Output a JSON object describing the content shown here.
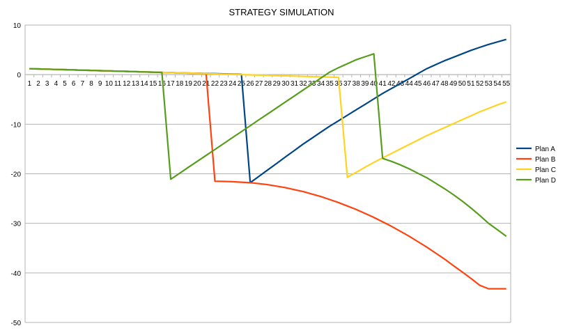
{
  "chart_data": {
    "type": "line",
    "title": "STRATEGY SIMULATION",
    "xlabel": "",
    "ylabel": "",
    "ylim": [
      -50,
      10
    ],
    "yticks": [
      10,
      0,
      -10,
      -20,
      -30,
      -40,
      -50
    ],
    "x": [
      1,
      2,
      3,
      4,
      5,
      6,
      7,
      8,
      9,
      10,
      11,
      12,
      13,
      14,
      15,
      16,
      17,
      18,
      19,
      20,
      21,
      22,
      23,
      24,
      25,
      26,
      27,
      28,
      29,
      30,
      31,
      32,
      33,
      34,
      35,
      36,
      37,
      38,
      39,
      40,
      41,
      42,
      43,
      44,
      45,
      46,
      47,
      48,
      49,
      50,
      51,
      52,
      53,
      54,
      55
    ],
    "grid": "horizontal",
    "legend": "right",
    "series": [
      {
        "name": "Plan A",
        "color": "#004586",
        "values": [
          1.2,
          1.15,
          1.1,
          1.05,
          1.0,
          0.95,
          0.9,
          0.85,
          0.8,
          0.75,
          0.7,
          0.65,
          0.6,
          0.55,
          0.5,
          0.45,
          0.4,
          0.35,
          0.3,
          0.27,
          0.24,
          0.2,
          0.15,
          0.1,
          0.05,
          -21.8,
          -20.5,
          -19.2,
          -17.9,
          -16.6,
          -15.3,
          -14.0,
          -12.8,
          -11.6,
          -10.4,
          -9.3,
          -8.2,
          -7.1,
          -6.0,
          -4.9,
          -3.8,
          -2.8,
          -1.8,
          -0.8,
          0.2,
          1.2,
          2.0,
          2.8,
          3.5,
          4.2,
          4.9,
          5.5,
          6.1,
          6.6,
          7.1
        ]
      },
      {
        "name": "Plan B",
        "color": "#ff420e",
        "values": [
          1.2,
          1.15,
          1.1,
          1.05,
          1.0,
          0.95,
          0.9,
          0.85,
          0.8,
          0.75,
          0.7,
          0.65,
          0.6,
          0.55,
          0.5,
          0.45,
          0.4,
          0.35,
          0.3,
          0.25,
          0.2,
          -21.5,
          -21.55,
          -21.6,
          -21.7,
          -21.8,
          -22.0,
          -22.2,
          -22.5,
          -22.8,
          -23.2,
          -23.6,
          -24.1,
          -24.6,
          -25.2,
          -25.8,
          -26.5,
          -27.2,
          -28.0,
          -28.8,
          -29.7,
          -30.6,
          -31.6,
          -32.6,
          -33.7,
          -34.8,
          -36.0,
          -37.2,
          -38.5,
          -39.8,
          -41.1,
          -42.5,
          -43.2,
          -43.2,
          -43.2
        ]
      },
      {
        "name": "Plan C",
        "color": "#ffd320",
        "values": [
          1.2,
          1.15,
          1.1,
          1.05,
          1.0,
          0.95,
          0.9,
          0.85,
          0.8,
          0.75,
          0.7,
          0.65,
          0.6,
          0.55,
          0.5,
          0.45,
          0.4,
          0.35,
          0.3,
          0.25,
          0.2,
          0.15,
          0.1,
          0.05,
          0.0,
          -0.05,
          -0.1,
          -0.15,
          -0.2,
          -0.25,
          -0.3,
          -0.35,
          -0.4,
          -0.45,
          -0.5,
          -0.55,
          -20.7,
          -19.7,
          -18.7,
          -17.7,
          -16.8,
          -15.9,
          -15.0,
          -14.1,
          -13.2,
          -12.3,
          -11.5,
          -10.7,
          -9.9,
          -9.1,
          -8.3,
          -7.5,
          -6.8,
          -6.1,
          -5.5
        ]
      },
      {
        "name": "Plan D",
        "color": "#579d1c",
        "values": [
          1.2,
          1.15,
          1.1,
          1.05,
          1.0,
          0.95,
          0.9,
          0.85,
          0.8,
          0.75,
          0.7,
          0.65,
          0.6,
          0.55,
          0.5,
          0.45,
          -21.1,
          -19.9,
          -18.7,
          -17.5,
          -16.3,
          -15.1,
          -13.9,
          -12.7,
          -11.5,
          -10.3,
          -9.1,
          -7.9,
          -6.7,
          -5.5,
          -4.3,
          -3.1,
          -1.9,
          -0.7,
          0.5,
          1.4,
          2.2,
          3.0,
          3.6,
          4.2,
          -16.9,
          -17.5,
          -18.2,
          -19.0,
          -19.9,
          -20.8,
          -21.9,
          -23.0,
          -24.2,
          -25.5,
          -26.9,
          -28.4,
          -30.0,
          -31.3,
          -32.6
        ]
      }
    ]
  }
}
